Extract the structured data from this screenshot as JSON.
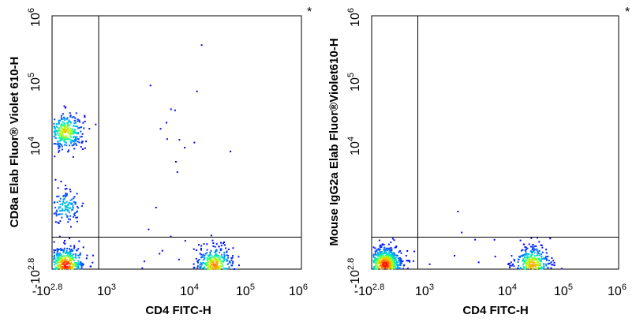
{
  "chart_data": [
    {
      "type": "scatter",
      "subtype": "flow-cytometry-density",
      "corner_mark": "*",
      "xlabel": "CD4 FITC-H",
      "ylabel": "CD8a Elab Fluor® Violet 610-H",
      "x_scale": "biexponential",
      "y_scale": "biexponential",
      "xlim": [
        -631,
        1000000
      ],
      "ylim": [
        -631,
        1000000
      ],
      "x_ticks": [
        {
          "label": "-10",
          "sup": "2.8",
          "value": -631
        },
        {
          "label": "10",
          "sup": "3",
          "value": 1000
        },
        {
          "label": "10",
          "sup": "4",
          "value": 10000
        },
        {
          "label": "10",
          "sup": "5",
          "value": 100000
        },
        {
          "label": "10",
          "sup": "6",
          "value": 1000000
        }
      ],
      "y_ticks": [
        {
          "label": "-10",
          "sup": "2.8",
          "value": -631
        },
        {
          "label": "10",
          "sup": "4",
          "value": 10000
        },
        {
          "label": "10",
          "sup": "5",
          "value": 100000
        },
        {
          "label": "10",
          "sup": "6",
          "value": 1000000
        }
      ],
      "quadrant_gate": {
        "x": 2500,
        "y": 1600
      },
      "populations": [
        {
          "x": 700,
          "y": 35000,
          "count": 320
        },
        {
          "x": 700,
          "y": 4000,
          "count": 130
        },
        {
          "x": 750,
          "y": -150,
          "count": 520
        },
        {
          "x": 75000,
          "y": -150,
          "count": 380
        },
        {
          "x": 30000,
          "y": 30000,
          "count": 14
        },
        {
          "x": 12000,
          "y": -100,
          "count": 18
        }
      ],
      "color_scale": [
        "#0000ff",
        "#00a0ff",
        "#00ffa0",
        "#c0ff00",
        "#ffa000",
        "#ff0000"
      ],
      "grid": false
    },
    {
      "type": "scatter",
      "subtype": "flow-cytometry-density",
      "corner_mark": "*",
      "xlabel": "CD4 FITC-H",
      "ylabel": "Mouse IgG2a Elab Fluor®Violet610-H",
      "x_scale": "biexponential",
      "y_scale": "biexponential",
      "xlim": [
        -631,
        1000000
      ],
      "ylim": [
        -631,
        1000000
      ],
      "x_ticks": [
        {
          "label": "-10",
          "sup": "2.8",
          "value": -631
        },
        {
          "label": "10",
          "sup": "3",
          "value": 1000
        },
        {
          "label": "10",
          "sup": "4",
          "value": 10000
        },
        {
          "label": "10",
          "sup": "5",
          "value": 100000
        },
        {
          "label": "10",
          "sup": "6",
          "value": 1000000
        }
      ],
      "y_ticks": [
        {
          "label": "-10",
          "sup": "2.8",
          "value": -631
        },
        {
          "label": "10",
          "sup": "4",
          "value": 10000
        },
        {
          "label": "10",
          "sup": "5",
          "value": 100000
        },
        {
          "label": "10",
          "sup": "6",
          "value": 1000000
        }
      ],
      "quadrant_gate": {
        "x": 2500,
        "y": 1600
      },
      "populations": [
        {
          "x": 700,
          "y": -100,
          "count": 700
        },
        {
          "x": 75000,
          "y": -100,
          "count": 360
        },
        {
          "x": 12000,
          "y": -100,
          "count": 16
        },
        {
          "x": 20000,
          "y": 1000,
          "count": 4
        }
      ],
      "color_scale": [
        "#0000ff",
        "#00a0ff",
        "#00ffa0",
        "#c0ff00",
        "#ffa000",
        "#ff0000"
      ],
      "grid": false
    }
  ]
}
